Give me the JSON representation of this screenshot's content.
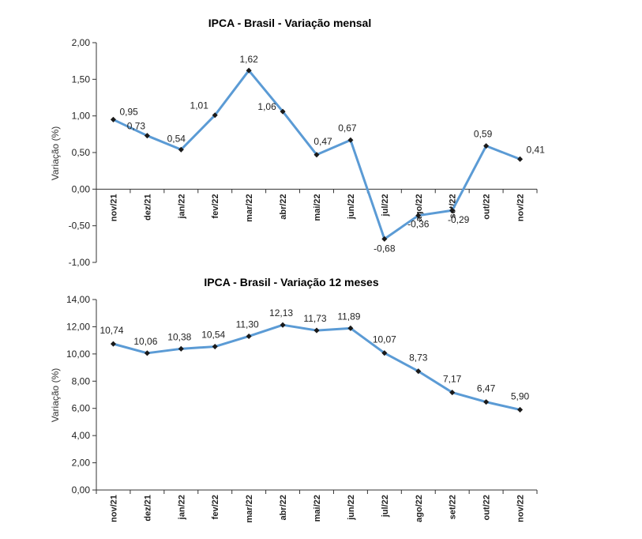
{
  "chart_data": [
    {
      "type": "line",
      "title": "IPCA - Brasil - Variação mensal",
      "ylabel": "Variação (%)",
      "xlabel": "",
      "ylim": [
        -1.0,
        2.0
      ],
      "yticks": [
        "2,00",
        "1,50",
        "1,00",
        "0,50",
        "0,00",
        "-0,50",
        "-1,00"
      ],
      "categories": [
        "nov/21",
        "dez/21",
        "jan/22",
        "fev/22",
        "mar/22",
        "abr/22",
        "mai/22",
        "jun/22",
        "jul/22",
        "ago/22",
        "set/22",
        "out/22",
        "nov/22"
      ],
      "values": [
        0.95,
        0.73,
        0.54,
        1.01,
        1.62,
        1.06,
        0.47,
        0.67,
        -0.68,
        -0.36,
        -0.29,
        0.59,
        0.41
      ],
      "labels": [
        "0,95",
        "0,73",
        "0,54",
        "1,01",
        "1,62",
        "1,06",
        "0,47",
        "0,67",
        "-0,68",
        "-0,36",
        "-0,29",
        "0,59",
        "0,41"
      ],
      "series_color": "#5b9bd5"
    },
    {
      "type": "line",
      "title": "IPCA - Brasil - Variação 12 meses",
      "ylabel": "Variação (%)",
      "xlabel": "",
      "ylim": [
        0,
        14
      ],
      "yticks": [
        "14,00",
        "12,00",
        "10,00",
        "8,00",
        "6,00",
        "4,00",
        "2,00",
        "0,00"
      ],
      "categories": [
        "nov/21",
        "dez/21",
        "jan/22",
        "fev/22",
        "mar/22",
        "abr/22",
        "mai/22",
        "jun/22",
        "jul/22",
        "ago/22",
        "set/22",
        "out/22",
        "nov/22"
      ],
      "values": [
        10.74,
        10.06,
        10.38,
        10.54,
        11.3,
        12.13,
        11.73,
        11.89,
        10.07,
        8.73,
        7.17,
        6.47,
        5.9
      ],
      "labels": [
        "10,74",
        "10,06",
        "10,38",
        "10,54",
        "11,30",
        "12,13",
        "11,73",
        "11,89",
        "10,07",
        "8,73",
        "7,17",
        "6,47",
        "5,90"
      ],
      "series_color": "#5b9bd5"
    }
  ]
}
